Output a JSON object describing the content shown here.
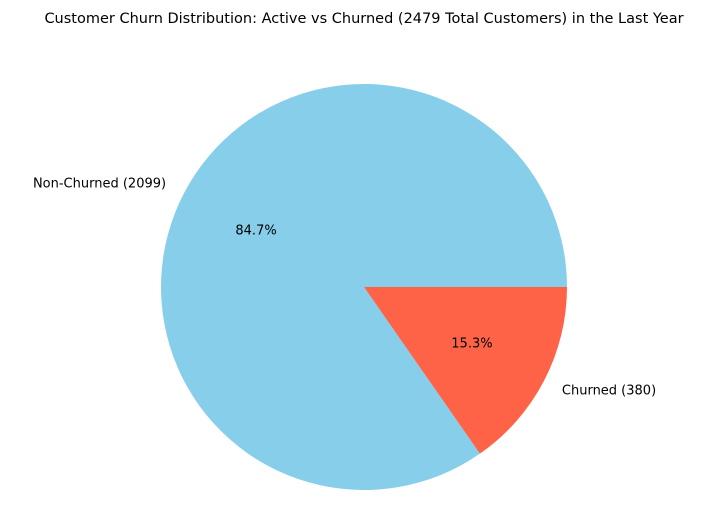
{
  "chart_data": {
    "type": "pie",
    "title": "Customer Churn Distribution: Active vs Churned (2479 Total Customers) in the Last Year",
    "slices": [
      {
        "label": "Non-Churned (2099)",
        "value": 2099,
        "percent_label": "84.7%",
        "color": "#87CEEB"
      },
      {
        "label": "Churned (380)",
        "value": 380,
        "percent_label": "15.3%",
        "color": "#FF6347"
      }
    ],
    "start_angle_deg": 0,
    "direction": "counterclockwise",
    "legend": "none"
  }
}
